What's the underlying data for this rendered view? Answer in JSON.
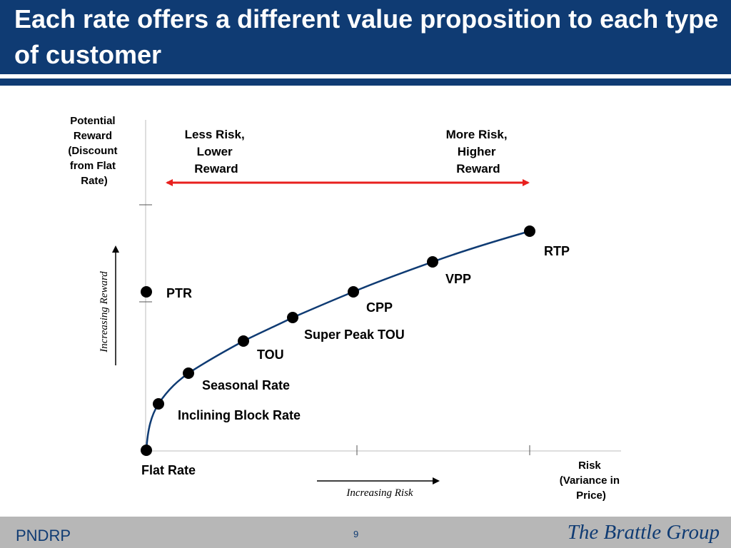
{
  "slide": {
    "title": "Each rate offers a different value proposition to each type of customer",
    "footer_left": "PNDRP",
    "page_number": "9",
    "logo_text": "The Brattle Group"
  },
  "colors": {
    "header": "#0f3b73",
    "curve": "#0f3b73",
    "risk_arrow": "#e8201e",
    "footer": "#b7b7b7"
  },
  "diagram": {
    "y_axis_title": [
      "Potential",
      "Reward",
      "(Discount",
      "from Flat",
      "Rate)"
    ],
    "x_axis_title": [
      "Risk",
      "(Variance in",
      "Price)"
    ],
    "increasing_reward": "Increasing Reward",
    "increasing_risk": "Increasing Risk",
    "less_risk": [
      "Less Risk,",
      "Lower",
      "Reward"
    ],
    "more_risk": [
      "More Risk,",
      "Higher",
      "Reward"
    ],
    "points": {
      "flat_rate": "Flat Rate",
      "inclining_block": "Inclining Block Rate",
      "seasonal": "Seasonal Rate",
      "tou": "TOU",
      "super_peak_tou": "Super Peak TOU",
      "cpp": "CPP",
      "vpp": "VPP",
      "rtp": "RTP",
      "ptr": "PTR"
    }
  }
}
